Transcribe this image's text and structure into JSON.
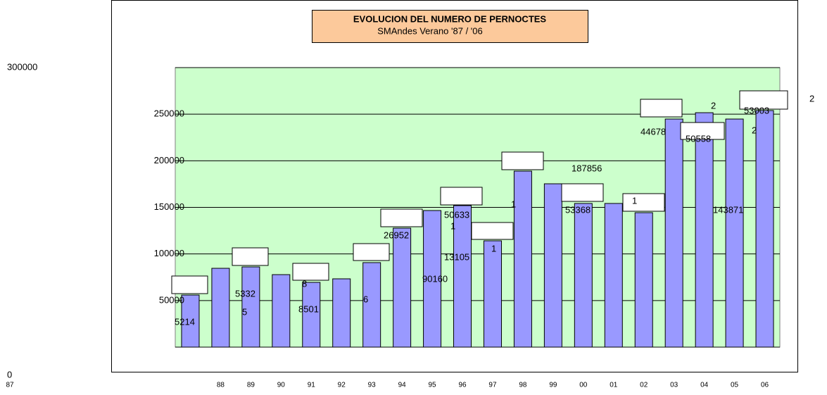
{
  "chart_data": {
    "type": "bar",
    "title": "EVOLUCION DEL NUMERO DE PERNOCTES",
    "subtitle": "SMAndes Verano '87 / '06",
    "categories": [
      "87",
      "88",
      "89",
      "90",
      "91",
      "92",
      "93",
      "94",
      "95",
      "96",
      "97",
      "98",
      "99",
      "00",
      "01",
      "02",
      "03",
      "04",
      "05",
      "06"
    ],
    "values": [
      55900,
      84600,
      86100,
      77800,
      69500,
      73300,
      90700,
      127700,
      146600,
      151900,
      114100,
      188900,
      175300,
      154200,
      154200,
      144300,
      244800,
      251600,
      244800,
      253900
    ],
    "color": "#9999ff",
    "ylim": [
      0,
      300000
    ],
    "yticks": [
      0,
      50000,
      100000,
      150000,
      200000,
      250000,
      300000
    ],
    "grid": true,
    "annotations": [
      "5214",
      "5332",
      "5",
      "8",
      "8501",
      "6",
      "26952",
      "90160",
      "50633",
      "1",
      "13105",
      "1",
      "1",
      "187856",
      "53368",
      "1",
      "44678",
      "2",
      "50558",
      "2",
      "143871",
      "53003",
      "2"
    ]
  }
}
